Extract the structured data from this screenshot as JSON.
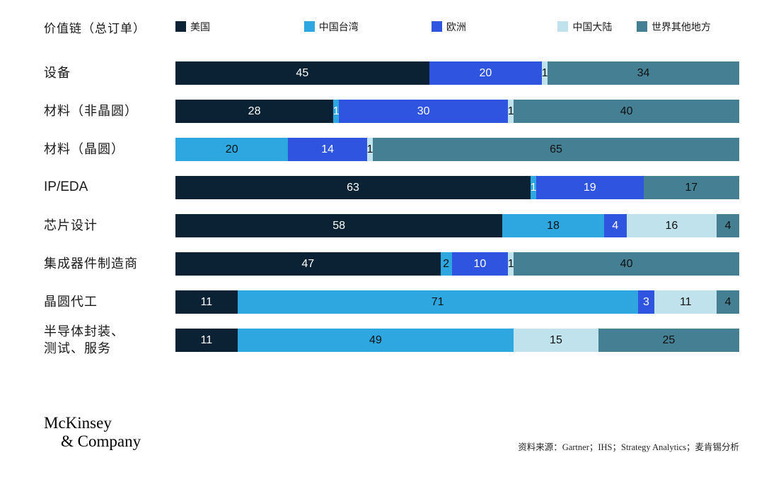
{
  "header": {
    "title": "价值链（总订单）",
    "legend": [
      {
        "key": "us",
        "label": "美国"
      },
      {
        "key": "tw",
        "label": "中国台湾"
      },
      {
        "key": "eu",
        "label": "欧洲"
      },
      {
        "key": "cn",
        "label": "中国大陆"
      },
      {
        "key": "row",
        "label": "世界其他地方"
      }
    ]
  },
  "colors": {
    "us": "#0a2233",
    "tw": "#2ea7e0",
    "eu": "#2f55e0",
    "cn": "#bfe2ec",
    "row": "#447f93"
  },
  "label_colors": {
    "us": "#ffffff",
    "tw": "#111111",
    "eu": "#ffffff",
    "cn": "#111111",
    "row": "#111111"
  },
  "chart_data": {
    "type": "bar",
    "stacked": true,
    "orientation": "horizontal",
    "unit": "percent",
    "xlim": [
      0,
      100
    ],
    "title": "价值链（总订单）",
    "legend": [
      "美国",
      "中国台湾",
      "欧洲",
      "中国大陆",
      "世界其他地方"
    ],
    "categories": [
      "设备",
      "材料（非晶圆）",
      "材料（晶圆）",
      "IP/EDA",
      "芯片设计",
      "集成器件制造商",
      "晶圆代工",
      "半导体封装、测试、服务"
    ],
    "rows": [
      {
        "label": "设备",
        "segments": [
          {
            "key": "us",
            "value": 45
          },
          {
            "key": "eu",
            "value": 20
          },
          {
            "key": "cn",
            "value": 1
          },
          {
            "key": "row",
            "value": 34
          }
        ]
      },
      {
        "label": "材料（非晶圆）",
        "segments": [
          {
            "key": "us",
            "value": 28
          },
          {
            "key": "tw",
            "value": 1,
            "label_color": "#ffffff"
          },
          {
            "key": "eu",
            "value": 30
          },
          {
            "key": "cn",
            "value": 1
          },
          {
            "key": "row",
            "value": 40
          }
        ]
      },
      {
        "label": "材料（晶圆）",
        "segments": [
          {
            "key": "tw",
            "value": 20
          },
          {
            "key": "eu",
            "value": 14
          },
          {
            "key": "cn",
            "value": 1
          },
          {
            "key": "row",
            "value": 65
          }
        ]
      },
      {
        "label": "IP/EDA",
        "segments": [
          {
            "key": "us",
            "value": 63
          },
          {
            "key": "tw",
            "value": 1,
            "label_color": "#ffffff"
          },
          {
            "key": "eu",
            "value": 19
          },
          {
            "key": "row",
            "value": 17
          }
        ]
      },
      {
        "label": "芯片设计",
        "segments": [
          {
            "key": "us",
            "value": 58
          },
          {
            "key": "tw",
            "value": 18
          },
          {
            "key": "eu",
            "value": 4
          },
          {
            "key": "cn",
            "value": 16
          },
          {
            "key": "row",
            "value": 4
          }
        ]
      },
      {
        "label": "集成器件制造商",
        "segments": [
          {
            "key": "us",
            "value": 47
          },
          {
            "key": "tw",
            "value": 2
          },
          {
            "key": "eu",
            "value": 10
          },
          {
            "key": "cn",
            "value": 1
          },
          {
            "key": "row",
            "value": 40
          }
        ]
      },
      {
        "label": "晶圆代工",
        "segments": [
          {
            "key": "us",
            "value": 11
          },
          {
            "key": "tw",
            "value": 71
          },
          {
            "key": "eu",
            "value": 3
          },
          {
            "key": "cn",
            "value": 11
          },
          {
            "key": "row",
            "value": 4
          }
        ]
      },
      {
        "label": "半导体封装、\n测试、服务",
        "segments": [
          {
            "key": "us",
            "value": 11
          },
          {
            "key": "tw",
            "value": 49
          },
          {
            "key": "cn",
            "value": 15
          },
          {
            "key": "row",
            "value": 25
          }
        ]
      }
    ]
  },
  "footer": {
    "logo_line1": "McKinsey",
    "logo_line2": "& Company",
    "source": "资料来源：Gartner；IHS；Strategy Analytics；麦肯锡分析"
  }
}
